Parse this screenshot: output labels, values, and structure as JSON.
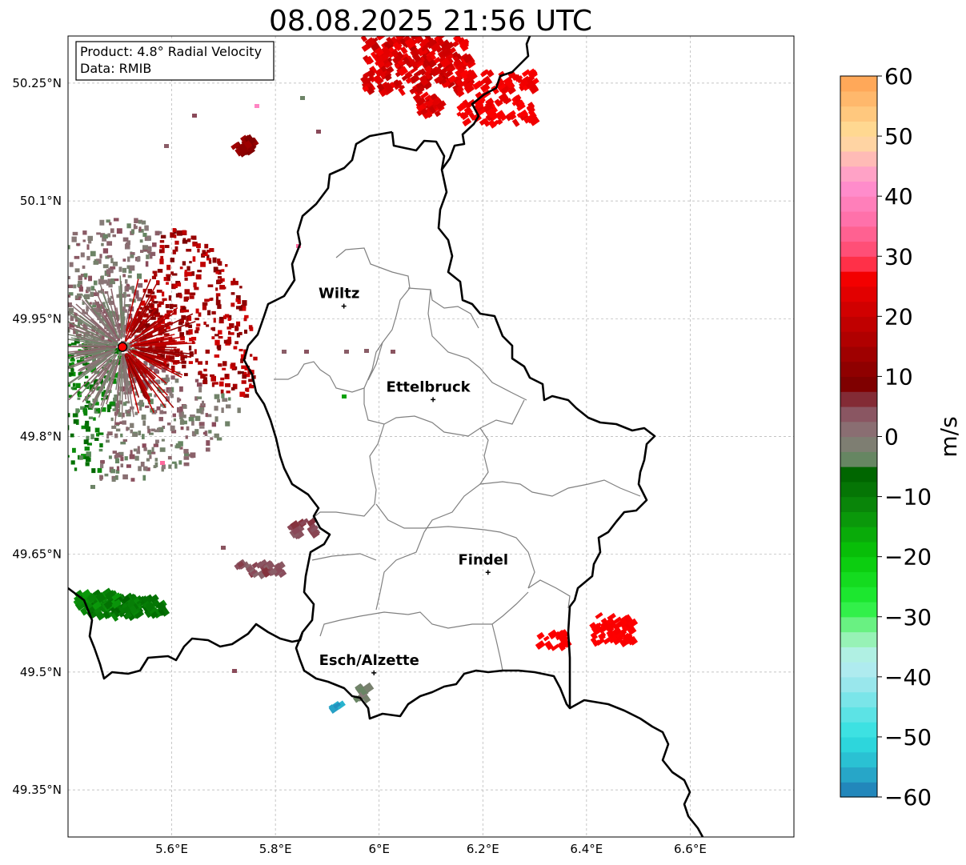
{
  "map": {
    "title": "08.08.2025 21:56 UTC",
    "info_box": {
      "line1": "Product: 4.8° Radial Velocity",
      "line2": "Data: RMIB"
    },
    "extent": {
      "lon": [
        5.4,
        6.8
      ],
      "lat": [
        49.29,
        50.31
      ]
    },
    "grid": true,
    "lon_ticks": [
      {
        "value": 5.6,
        "label": "5.6°E"
      },
      {
        "value": 5.8,
        "label": "5.8°E"
      },
      {
        "value": 6.0,
        "label": "6°E"
      },
      {
        "value": 6.2,
        "label": "6.2°E"
      },
      {
        "value": 6.4,
        "label": "6.4°E"
      },
      {
        "value": 6.6,
        "label": "6.6°E"
      }
    ],
    "lat_ticks": [
      {
        "value": 50.25,
        "label": "50.25°N"
      },
      {
        "value": 50.1,
        "label": "50.1°N"
      },
      {
        "value": 49.95,
        "label": "49.95°N"
      },
      {
        "value": 49.8,
        "label": "49.8°N"
      },
      {
        "value": 49.65,
        "label": "49.65°N"
      },
      {
        "value": 49.5,
        "label": "49.5°N"
      },
      {
        "value": 49.35,
        "label": "49.35°N"
      }
    ],
    "cities": [
      {
        "name": "Wiltz",
        "lon": 5.932,
        "lat": 49.966
      },
      {
        "name": "Ettelbruck",
        "lon": 6.104,
        "lat": 49.847
      },
      {
        "name": "Findel",
        "lon": 6.21,
        "lat": 49.627
      },
      {
        "name": "Esch/Alzette",
        "lon": 5.99,
        "lat": 49.499
      }
    ],
    "radar_site": {
      "lon": 5.505,
      "lat": 49.914
    }
  },
  "colorbar": {
    "label": "m/s",
    "ticks": [
      "60",
      "50",
      "40",
      "30",
      "20",
      "10",
      "0",
      "−10",
      "−20",
      "−30",
      "−40",
      "−50",
      "−60"
    ],
    "tick_values": [
      60,
      50,
      40,
      30,
      20,
      10,
      0,
      -10,
      -20,
      -30,
      -40,
      -50,
      -60
    ],
    "range": [
      -60,
      60
    ],
    "stops": [
      {
        "value": -60,
        "color": "#1f77b4"
      },
      {
        "value": -55,
        "color": "#29b6cf"
      },
      {
        "value": -50,
        "color": "#2ee0e0"
      },
      {
        "value": -40,
        "color": "#a8e8ee"
      },
      {
        "value": -37,
        "color": "#b8f0f0"
      },
      {
        "value": -33,
        "color": "#8ff2a8"
      },
      {
        "value": -28,
        "color": "#22f03a"
      },
      {
        "value": -20,
        "color": "#08c808"
      },
      {
        "value": -12,
        "color": "#0a8a0a"
      },
      {
        "value": -6,
        "color": "#006400"
      },
      {
        "value": -5,
        "color": "#5a8a5a"
      },
      {
        "value": 0,
        "color": "#8a7a7a"
      },
      {
        "value": 5,
        "color": "#8a4a5a"
      },
      {
        "value": 8,
        "color": "#7a0000"
      },
      {
        "value": 20,
        "color": "#c80000"
      },
      {
        "value": 28,
        "color": "#ff0000"
      },
      {
        "value": 29,
        "color": "#ff4060"
      },
      {
        "value": 36,
        "color": "#ff70a8"
      },
      {
        "value": 42,
        "color": "#ff90d0"
      },
      {
        "value": 46,
        "color": "#ffb8b8"
      },
      {
        "value": 50,
        "color": "#ffe09a"
      },
      {
        "value": 60,
        "color": "#ffa050"
      }
    ]
  }
}
